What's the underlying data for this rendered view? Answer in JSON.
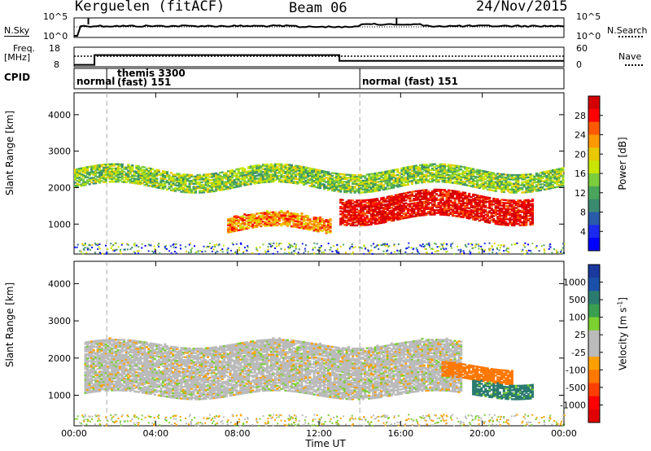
{
  "header": {
    "station": "Kerguelen (fitACF)",
    "beam": "Beam 06",
    "date": "24/Nov/2015"
  },
  "top_panels": {
    "nsky_label": "N.Sky",
    "nsky_ticks": [
      "10^5",
      "10^0"
    ],
    "nsearch_label": "N.Search",
    "nsearch_ticks": [
      "10^5",
      "10^0"
    ],
    "freq_label": "Freq.",
    "freq_unit": "[MHz]",
    "freq_ticks": [
      "18",
      "8"
    ],
    "nave_label": "Nave",
    "nave_ticks": [
      "60",
      "0"
    ],
    "cpid_label": "CPID",
    "cpid_segments": [
      {
        "text": "normal",
        "start": 0.0
      },
      {
        "text": "themis 3300",
        "start": 1.6
      },
      {
        "text": "(fast) 151",
        "start": 1.6
      },
      {
        "text": "normal (fast) 151",
        "start": 14.0
      }
    ]
  },
  "power_panel": {
    "ylabel": "Slant Range [km]",
    "cbar_label": "Power [dB]",
    "cbar_ticks": [
      "28",
      "24",
      "20",
      "16",
      "12",
      "8",
      "4"
    ],
    "cbar_colors": [
      "#d40000",
      "#ff0000",
      "#ff5a00",
      "#ff9900",
      "#e8c800",
      "#c8e600",
      "#7ccd3c",
      "#4aa55a",
      "#3a8a70",
      "#2a5aaa",
      "#1a2aee",
      "#0000ff"
    ]
  },
  "velocity_panel": {
    "ylabel": "Slant Range [km]",
    "cbar_label": "Velocity [m s",
    "cbar_label_sup": "-1",
    "cbar_label_end": "]",
    "cbar_ticks": [
      "1000",
      "500",
      "100",
      "25",
      "-25",
      "-100",
      "-500",
      "-1000"
    ],
    "cbar_colors": [
      "#1a3aa0",
      "#1a50aa",
      "#2a7a70",
      "#3aa050",
      "#7cd030",
      "#bbbbbb",
      "#bbbbbb",
      "#ffa000",
      "#ff7800",
      "#ff4000",
      "#ff0000",
      "#e00000"
    ],
    "ground_color": "#bbbbbb"
  },
  "x_axis": {
    "label": "Time UT",
    "ticks": [
      "00:00",
      "04:00",
      "08:00",
      "12:00",
      "16:00",
      "20:00",
      "00:00"
    ]
  },
  "y_axis_ticks": [
    "4000",
    "3000",
    "2000",
    "1000"
  ],
  "chart_data": {
    "type": "heatmap",
    "title": "Kerguelen (fitACF) Beam 06 24/Nov/2015",
    "xlabel": "Time UT",
    "ylabel": "Slant Range [km]",
    "xlim_hours": [
      0,
      24
    ],
    "ylim_km": [
      180,
      4600
    ],
    "power_range_db": [
      0,
      30
    ],
    "velocity_range_ms": [
      -1000,
      1000
    ],
    "frequency_segments_mhz": [
      {
        "start_h": 0.0,
        "end_h": 1.0,
        "value": 9
      },
      {
        "start_h": 1.0,
        "end_h": 13.0,
        "value": 14
      },
      {
        "start_h": 13.0,
        "end_h": 24.0,
        "value": 11
      }
    ],
    "power_features": [
      {
        "name": "upper band",
        "t_start": 0.0,
        "t_end": 24.0,
        "range_km_approx": [
          2000,
          2500
        ],
        "power_db": 14
      },
      {
        "name": "mid band",
        "t_start": 7.5,
        "t_end": 12.5,
        "range_km_approx": [
          800,
          1200
        ],
        "power_db": 22
      },
      {
        "name": "post-13UT enhancement",
        "t_start": 13.0,
        "t_end": 22.5,
        "range_km_approx": [
          1100,
          1800
        ],
        "power_db": 28
      }
    ],
    "velocity_features": [
      {
        "name": "ground scatter",
        "t_start": 0.5,
        "t_end": 19.0,
        "range_km_approx": [
          1000,
          2400
        ],
        "velocity_ms": 0
      },
      {
        "name": "negative velocity",
        "t_start": 18.0,
        "t_end": 21.5,
        "range_km_approx": [
          1400,
          1800
        ],
        "velocity_ms": -300
      },
      {
        "name": "positive velocity",
        "t_start": 19.5,
        "t_end": 22.5,
        "range_km_approx": [
          1000,
          1400
        ],
        "velocity_ms": 120
      }
    ]
  }
}
